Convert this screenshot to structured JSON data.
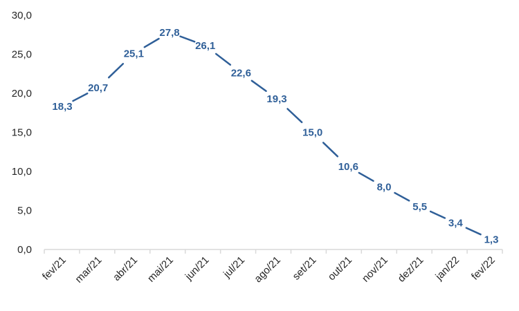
{
  "chart_data": {
    "type": "line",
    "title": "",
    "xlabel": "",
    "ylabel": "",
    "categories": [
      "fev/21",
      "mar/21",
      "abr/21",
      "mai/21",
      "jun/21",
      "jul/21",
      "ago/21",
      "set/21",
      "out/21",
      "nov/21",
      "dez/21",
      "jan/22",
      "fev/22"
    ],
    "series": [
      {
        "values": [
          18.3,
          20.7,
          25.1,
          27.8,
          26.1,
          22.6,
          19.3,
          15.0,
          10.6,
          8.0,
          5.5,
          3.4,
          1.3
        ],
        "labels": [
          "18,3",
          "20,7",
          "25,1",
          "27,8",
          "26,1",
          "22,6",
          "19,3",
          "15,0",
          "10,6",
          "8,0",
          "5,5",
          "3,4",
          "1,3"
        ]
      }
    ],
    "ylim": [
      0,
      30
    ],
    "yticks": [
      0,
      5,
      10,
      15,
      20,
      25,
      30
    ],
    "ytick_labels": [
      "0,0",
      "5,0",
      "10,0",
      "15,0",
      "20,0",
      "25,0",
      "30,0"
    ],
    "grid": false,
    "legend": "none",
    "line_color": "#2F5F98",
    "label_color": "#2F5F98",
    "axis_color": "#D9D9D9"
  }
}
